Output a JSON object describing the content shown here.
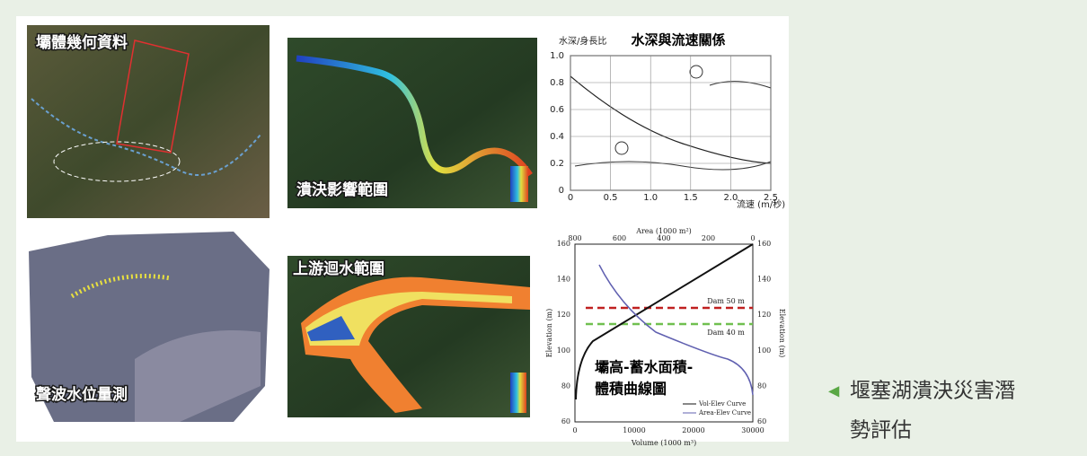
{
  "figure": {
    "panels": [
      {
        "label": "壩體幾何資料"
      },
      {
        "label": "潰決影響範圍"
      },
      {
        "label": "聲波水位量測"
      },
      {
        "label": "上游迴水範圍"
      }
    ],
    "depth_chart": {
      "title": "水深與流速關係",
      "y_label": "水深/身長比",
      "x_label": "流速 (m/秒)",
      "yticks": [
        "0",
        "0.2",
        "0.4",
        "0.6",
        "0.8",
        "1.0"
      ],
      "xticks": [
        "0",
        "0.5",
        "1.0",
        "1.5",
        "2.0",
        "2.5"
      ]
    },
    "elevation_chart": {
      "top_label": "Area (1000 m²)",
      "top_ticks": [
        "800",
        "600",
        "400",
        "200",
        "0"
      ],
      "y_label": "Elevation (m)",
      "y2_label": "Elevation (m)",
      "yticks": [
        "60",
        "80",
        "100",
        "120",
        "140",
        "160"
      ],
      "x_label": "Volume (1000 m³)",
      "xticks": [
        "0",
        "10000",
        "20000",
        "30000"
      ],
      "lines": [
        "Dam 50 m",
        "Dam 40 m"
      ],
      "legend": [
        "Vol-Elev Curve",
        "Area-Elev Curve"
      ],
      "overlay": [
        "壩高-蓄水面積-",
        "體積曲線圖"
      ]
    }
  },
  "caption": {
    "marker": "◀",
    "lines": [
      "堰塞湖潰決災害潛",
      "勢評估"
    ]
  }
}
